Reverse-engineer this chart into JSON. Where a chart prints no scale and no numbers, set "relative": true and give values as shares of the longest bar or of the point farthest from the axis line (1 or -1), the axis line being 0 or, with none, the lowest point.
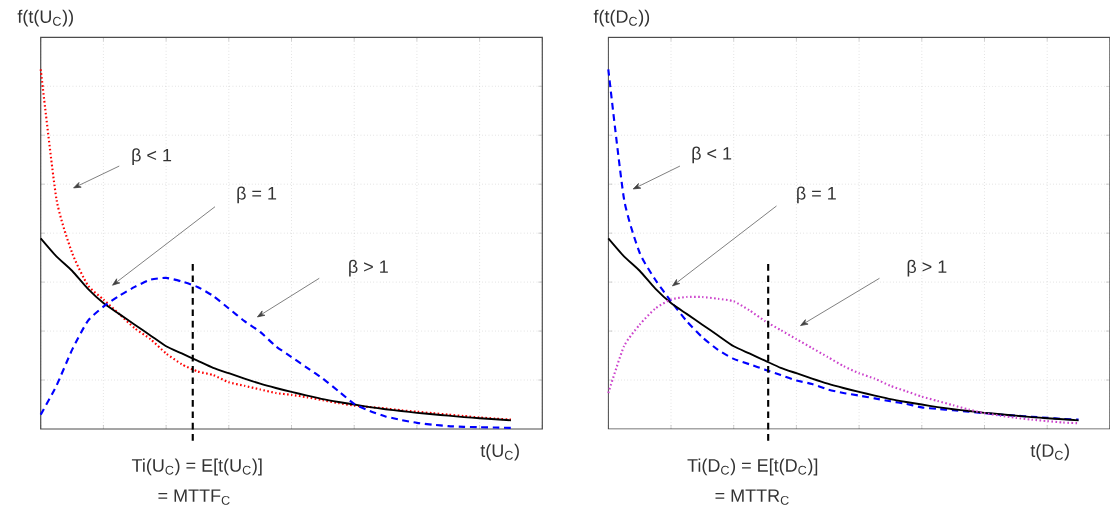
{
  "chart_data": [
    {
      "type": "line",
      "relative": true,
      "ylabel": "f(t(U$_{C}$))",
      "xlabel": "t(U$_{C}$)",
      "grid": true,
      "categories": [
        null,
        null,
        null,
        null,
        null,
        null,
        null,
        null,
        null,
        null,
        null,
        null,
        null,
        null,
        null,
        null,
        null,
        null,
        null,
        null,
        null,
        null,
        null,
        null,
        null,
        null,
        null,
        null,
        null,
        null,
        null,
        null,
        null
      ],
      "annotations": [
        "β < 1",
        "β = 1",
        "β > 1",
        "Ti(U$_{C}$) = E[t(U$_{C}$)]",
        "= MTTF$_{C}$"
      ],
      "series": [
        {
          "color": "#ff0000",
          "line_style": "dotted",
          "values": [
            1.0,
            0.64,
            0.49,
            0.4,
            0.36,
            0.32,
            0.28,
            0.25,
            0.21,
            0.18,
            0.16,
            0.15,
            0.13,
            0.12,
            0.11,
            0.1,
            0.095,
            0.088,
            0.08,
            0.072,
            0.065,
            0.061,
            0.057,
            0.052,
            0.048,
            0.044,
            0.04,
            0.036,
            0.032,
            0.029,
            0.026,
            null,
            null
          ]
        },
        {
          "color": "#000000",
          "line_style": "solid",
          "values": [
            0.53,
            0.48,
            0.44,
            0.39,
            0.35,
            0.32,
            0.29,
            0.26,
            0.23,
            0.21,
            0.19,
            0.17,
            0.155,
            0.14,
            0.126,
            0.114,
            0.103,
            0.093,
            0.083,
            0.075,
            0.068,
            0.061,
            0.055,
            0.05,
            0.045,
            0.041,
            0.037,
            0.033,
            0.03,
            0.027,
            0.024,
            null,
            null
          ]
        },
        {
          "color": "#0000ff",
          "line_style": "dashed",
          "values": [
            0.04,
            0.12,
            0.22,
            0.3,
            0.34,
            0.37,
            0.395,
            0.415,
            0.42,
            0.41,
            0.395,
            0.37,
            0.335,
            0.3,
            0.27,
            0.23,
            0.2,
            0.17,
            0.14,
            0.105,
            0.07,
            0.05,
            0.035,
            0.025,
            0.017,
            0.012,
            0.008,
            0.006,
            0.005,
            0.004,
            0.003,
            null,
            null
          ]
        }
      ]
    },
    {
      "type": "line",
      "relative": true,
      "ylabel": "f(t(D$_{C}$))",
      "xlabel": "t(D$_{C}$)",
      "grid": true,
      "categories": [
        null,
        null,
        null,
        null,
        null,
        null,
        null,
        null,
        null,
        null,
        null,
        null,
        null,
        null,
        null,
        null,
        null,
        null,
        null,
        null,
        null,
        null,
        null,
        null,
        null,
        null,
        null,
        null,
        null,
        null,
        null,
        null,
        null
      ],
      "annotations": [
        "β < 1",
        "β = 1",
        "β > 1",
        "Ti(D$_{C}$) = E[t(D$_{C}$)]",
        "= MTTR$_{C}$"
      ],
      "series": [
        {
          "color": "#0000ff",
          "line_style": "dashed",
          "values": [
            1.0,
            0.64,
            0.49,
            0.415,
            0.355,
            0.3,
            0.255,
            0.22,
            0.195,
            0.18,
            0.165,
            0.15,
            0.135,
            0.125,
            0.11,
            0.1,
            0.093,
            0.085,
            0.077,
            0.07,
            0.06,
            0.056,
            0.052,
            0.048,
            0.044,
            0.04,
            0.037,
            0.034,
            0.031,
            0.028,
            0.026,
            null,
            null
          ]
        },
        {
          "color": "#000000",
          "line_style": "solid",
          "values": [
            0.53,
            0.48,
            0.44,
            0.39,
            0.35,
            0.32,
            0.29,
            0.26,
            0.23,
            0.21,
            0.19,
            0.17,
            0.155,
            0.14,
            0.126,
            0.114,
            0.103,
            0.093,
            0.083,
            0.075,
            0.068,
            0.061,
            0.055,
            0.05,
            0.045,
            0.041,
            0.037,
            0.033,
            0.03,
            0.027,
            0.024,
            null,
            null
          ]
        },
        {
          "color": "#cc44cc",
          "line_style": "dotted",
          "values": [
            0.1,
            0.23,
            0.29,
            0.335,
            0.36,
            0.367,
            0.367,
            0.362,
            0.355,
            0.33,
            0.3,
            0.275,
            0.25,
            0.225,
            0.2,
            0.175,
            0.155,
            0.14,
            0.12,
            0.105,
            0.09,
            0.078,
            0.066,
            0.054,
            0.044,
            0.037,
            0.031,
            0.026,
            0.022,
            0.018,
            0.016,
            null,
            null
          ]
        }
      ]
    }
  ]
}
